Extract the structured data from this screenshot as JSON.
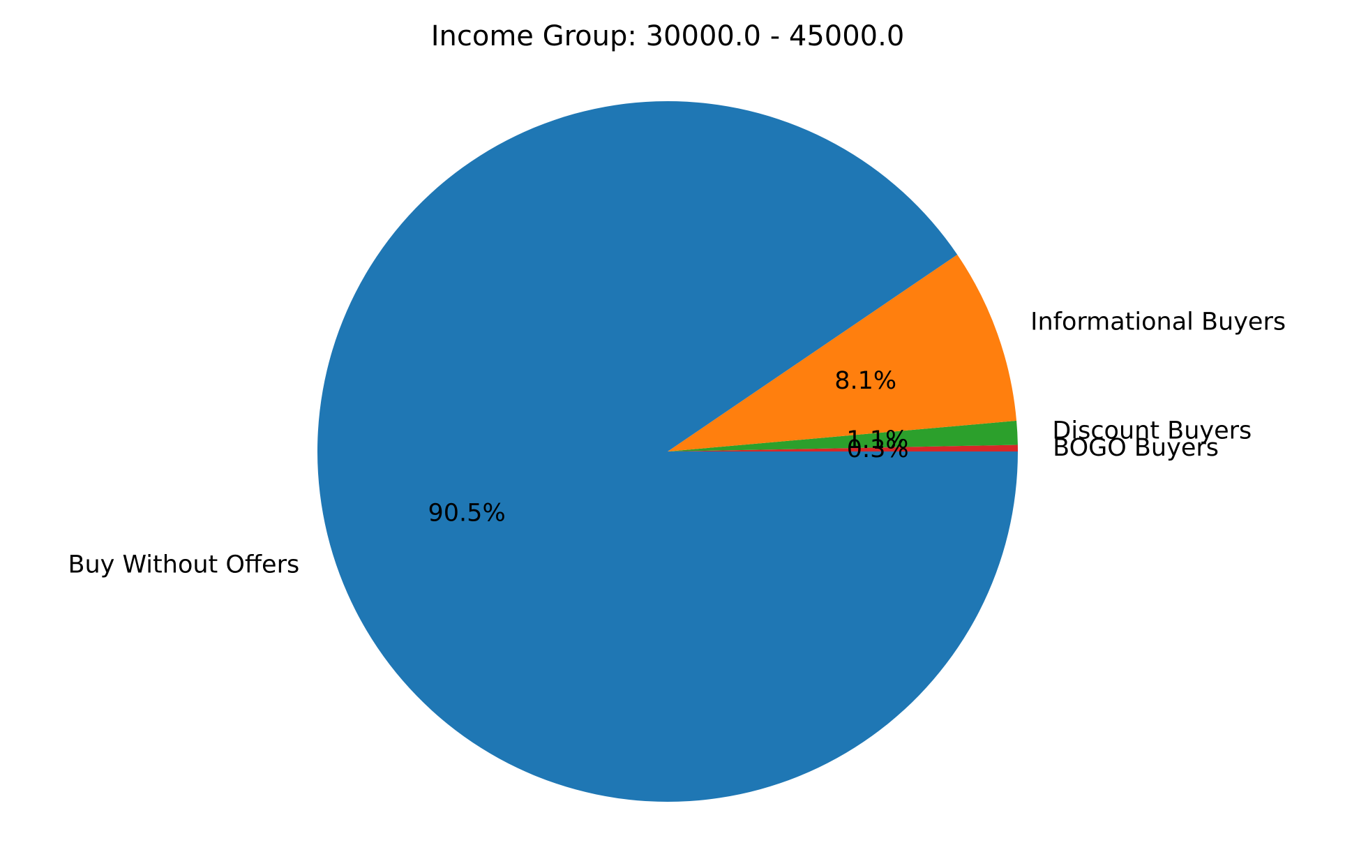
{
  "chart_data": {
    "type": "pie",
    "title": "Income Group: 30000.0 - 45000.0",
    "start_angle_deg": 0,
    "direction": "counterclockwise",
    "slices": [
      {
        "label": "BOGO Buyers",
        "value": 0.3,
        "pct_label": "0.3%",
        "color": "#d62728"
      },
      {
        "label": "Discount Buyers",
        "value": 1.1,
        "pct_label": "1.1%",
        "color": "#2ca02c"
      },
      {
        "label": "Informational Buyers",
        "value": 8.1,
        "pct_label": "8.1%",
        "color": "#ff7f0e"
      },
      {
        "label": "Buy Without Offers",
        "value": 90.5,
        "pct_label": "90.5%",
        "color": "#1f77b4"
      }
    ]
  }
}
